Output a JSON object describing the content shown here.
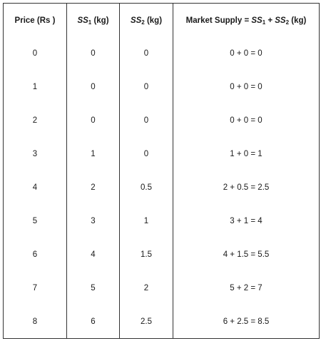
{
  "table": {
    "headers": {
      "price": "Price (Rs )",
      "ss1": {
        "var": "SS",
        "sub": "1",
        "unit": " (kg)"
      },
      "ss2": {
        "var": "SS",
        "sub": "2",
        "unit": " (kg)"
      },
      "market": {
        "prefix": "Market Supply = ",
        "var1": "SS",
        "sub1": "1",
        "plus": " + ",
        "var2": "SS",
        "sub2": "2",
        "unit": " (kg)"
      }
    },
    "rows": [
      {
        "price": "0",
        "ss1": "0",
        "ss2": "0",
        "market": "0 + 0 = 0"
      },
      {
        "price": "1",
        "ss1": "0",
        "ss2": "0",
        "market": "0 + 0 = 0"
      },
      {
        "price": "2",
        "ss1": "0",
        "ss2": "0",
        "market": "0 + 0 = 0"
      },
      {
        "price": "3",
        "ss1": "1",
        "ss2": "0",
        "market": "1 + 0 = 1"
      },
      {
        "price": "4",
        "ss1": "2",
        "ss2": "0.5",
        "market": "2 + 0.5 = 2.5"
      },
      {
        "price": "5",
        "ss1": "3",
        "ss2": "1",
        "market": "3 + 1 = 4"
      },
      {
        "price": "6",
        "ss1": "4",
        "ss2": "1.5",
        "market": "4 + 1.5 = 5.5"
      },
      {
        "price": "7",
        "ss1": "5",
        "ss2": "2",
        "market": "5 + 2 = 7"
      },
      {
        "price": "8",
        "ss1": "6",
        "ss2": "2.5",
        "market": "6 + 2.5 = 8.5"
      }
    ]
  }
}
